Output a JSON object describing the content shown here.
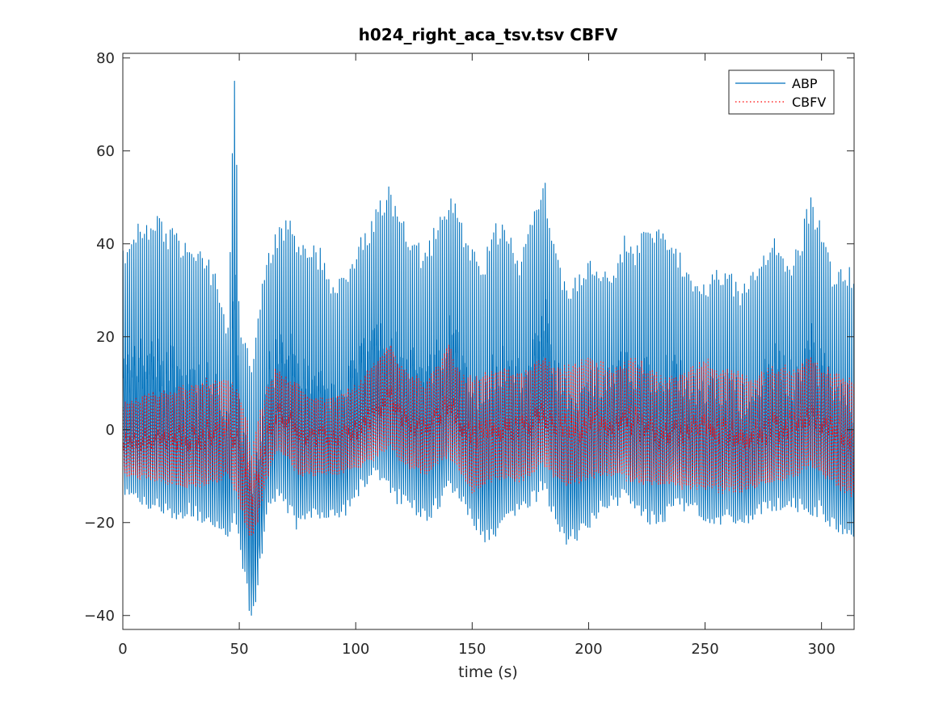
{
  "chart_data": {
    "type": "line",
    "title": "h024_right_aca_tsv.tsv CBFV",
    "xlabel": "time (s)",
    "ylabel": "",
    "xlim": [
      0,
      314
    ],
    "ylim": [
      -43,
      81
    ],
    "xticks": [
      0,
      50,
      100,
      150,
      200,
      250,
      300
    ],
    "yticks": [
      -40,
      -20,
      0,
      20,
      40,
      60,
      80
    ],
    "grid": false,
    "legend_position": "top-right",
    "series": [
      {
        "name": "ABP",
        "color": "#0072BD",
        "style": "solid",
        "beat_period_s": 0.92,
        "envelope": {
          "t": [
            0,
            5,
            10,
            15,
            20,
            25,
            30,
            35,
            40,
            45,
            48,
            50,
            53,
            55,
            58,
            62,
            66,
            70,
            75,
            80,
            85,
            90,
            95,
            100,
            105,
            110,
            115,
            120,
            125,
            130,
            135,
            140,
            145,
            150,
            155,
            160,
            165,
            170,
            175,
            180,
            185,
            190,
            195,
            200,
            205,
            210,
            215,
            220,
            225,
            230,
            235,
            240,
            245,
            250,
            255,
            260,
            265,
            270,
            275,
            280,
            285,
            290,
            295,
            300,
            305,
            310,
            314
          ],
          "max": [
            40,
            44,
            46,
            47,
            44,
            42,
            41,
            40,
            33,
            22,
            81,
            22,
            20,
            14,
            26,
            38,
            44,
            47,
            43,
            40,
            39,
            33,
            35,
            40,
            44,
            50,
            53,
            46,
            42,
            38,
            47,
            52,
            46,
            40,
            38,
            46,
            44,
            38,
            45,
            57,
            42,
            31,
            34,
            38,
            36,
            34,
            42,
            38,
            48,
            44,
            40,
            38,
            33,
            32,
            36,
            35,
            31,
            35,
            40,
            42,
            36,
            40,
            51,
            45,
            34,
            35,
            35
          ],
          "min": [
            -15,
            -16,
            -17,
            -18,
            -19,
            -20,
            -19,
            -21,
            -22,
            -23,
            -24,
            -25,
            -35,
            -42,
            -35,
            -17,
            -16,
            -18,
            -22,
            -20,
            -20,
            -19,
            -19,
            -15,
            -12,
            -11,
            -15,
            -17,
            -18,
            -20,
            -18,
            -13,
            -17,
            -20,
            -25,
            -23,
            -21,
            -19,
            -17,
            -14,
            -20,
            -25,
            -24,
            -22,
            -18,
            -17,
            -16,
            -17,
            -20,
            -22,
            -18,
            -18,
            -18,
            -20,
            -21,
            -20,
            -21,
            -20,
            -19,
            -18,
            -17,
            -18,
            -19,
            -19,
            -22,
            -23,
            -24
          ]
        }
      },
      {
        "name": "CBFV",
        "color": "#FF0000",
        "style": "dotted",
        "beat_period_s": 0.92,
        "envelope": {
          "t": [
            0,
            10,
            20,
            30,
            40,
            45,
            50,
            53,
            55,
            58,
            62,
            66,
            70,
            75,
            80,
            90,
            100,
            110,
            115,
            120,
            130,
            140,
            145,
            150,
            160,
            170,
            180,
            190,
            200,
            210,
            220,
            230,
            240,
            250,
            260,
            270,
            280,
            290,
            295,
            300,
            310,
            314
          ],
          "max": [
            6,
            8,
            9,
            10,
            12,
            11,
            9,
            4,
            -5,
            3,
            10,
            14,
            12,
            10,
            8,
            7,
            10,
            16,
            19,
            14,
            10,
            19,
            12,
            12,
            14,
            13,
            16,
            14,
            16,
            14,
            16,
            12,
            12,
            16,
            13,
            12,
            14,
            14,
            16,
            14,
            12,
            12
          ],
          "min": [
            -10,
            -11,
            -12,
            -13,
            -12,
            -10,
            -16,
            -22,
            -24,
            -20,
            -11,
            -5,
            -6,
            -10,
            -10,
            -10,
            -9,
            -6,
            -4,
            -8,
            -10,
            -6,
            -10,
            -14,
            -11,
            -12,
            -8,
            -13,
            -11,
            -10,
            -12,
            -12,
            -13,
            -13,
            -14,
            -13,
            -12,
            -10,
            -8,
            -10,
            -14,
            -15
          ]
        }
      }
    ]
  }
}
